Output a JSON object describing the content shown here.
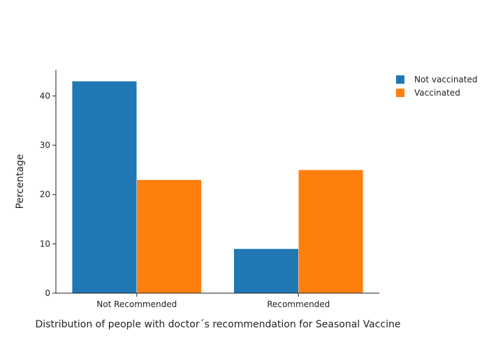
{
  "chart_data": {
    "type": "bar",
    "title": "",
    "xlabel": "Distribution of people with doctor´s recommendation for Seasonal Vaccine",
    "ylabel": "Percentage",
    "categories": [
      "Not Recommended",
      "Recommended"
    ],
    "series": [
      {
        "name": "Not vaccinated",
        "values": [
          43,
          9
        ],
        "color": "#1f77b4"
      },
      {
        "name": "Vaccinated",
        "values": [
          23,
          25
        ],
        "color": "#ff7f0e"
      }
    ],
    "ylim": [
      0,
      45.3
    ],
    "yticks": [
      0,
      10,
      20,
      30,
      40
    ],
    "grid": false,
    "legend": "top-right"
  }
}
